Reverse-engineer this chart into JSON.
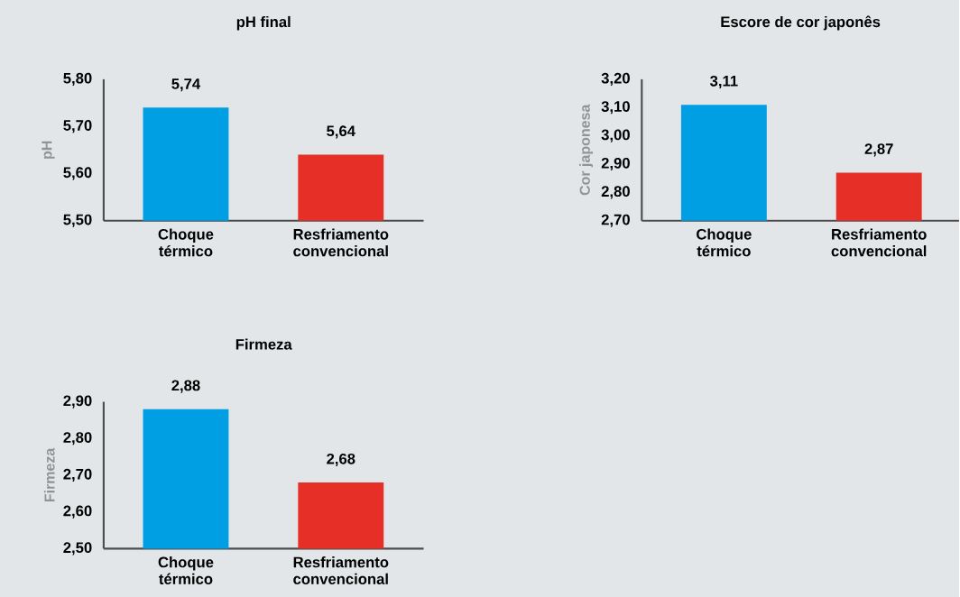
{
  "chart_data": [
    {
      "type": "bar",
      "title": "pH final",
      "ylabel": "pH",
      "categories": [
        "Choque térmico",
        "Resfriamento convencional"
      ],
      "values": [
        5.74,
        5.64
      ],
      "colors": [
        "#009fe3",
        "#e63027"
      ],
      "value_labels": [
        "5,74",
        "5,64"
      ],
      "ylim": [
        5.5,
        5.8
      ],
      "yticks": [
        {
          "value": 5.5,
          "label": "5,50"
        },
        {
          "value": 5.6,
          "label": "5,60"
        },
        {
          "value": 5.7,
          "label": "5,70"
        },
        {
          "value": 5.8,
          "label": "5,80"
        }
      ]
    },
    {
      "type": "bar",
      "title": "Escore de cor japonês",
      "ylabel": "Cor japonesa",
      "categories": [
        "Choque térmico",
        "Resfriamento convencional"
      ],
      "values": [
        3.11,
        2.87
      ],
      "colors": [
        "#009fe3",
        "#e63027"
      ],
      "value_labels": [
        "3,11",
        "2,87"
      ],
      "ylim": [
        2.7,
        3.2
      ],
      "yticks": [
        {
          "value": 2.7,
          "label": "2,70"
        },
        {
          "value": 2.8,
          "label": "2,80"
        },
        {
          "value": 2.9,
          "label": "2,90"
        },
        {
          "value": 3.0,
          "label": "3,00"
        },
        {
          "value": 3.1,
          "label": "3,10"
        },
        {
          "value": 3.2,
          "label": "3,20"
        }
      ]
    },
    {
      "type": "bar",
      "title": "Firmeza",
      "ylabel": "Firmeza",
      "categories": [
        "Choque térmico",
        "Resfriamento convencional"
      ],
      "values": [
        2.88,
        2.68
      ],
      "colors": [
        "#009fe3",
        "#e63027"
      ],
      "value_labels": [
        "2,88",
        "2,68"
      ],
      "ylim": [
        2.5,
        2.9
      ],
      "yticks": [
        {
          "value": 2.5,
          "label": "2,50"
        },
        {
          "value": 2.6,
          "label": "2,60"
        },
        {
          "value": 2.7,
          "label": "2,70"
        },
        {
          "value": 2.8,
          "label": "2,80"
        },
        {
          "value": 2.9,
          "label": "2,90"
        }
      ]
    }
  ]
}
